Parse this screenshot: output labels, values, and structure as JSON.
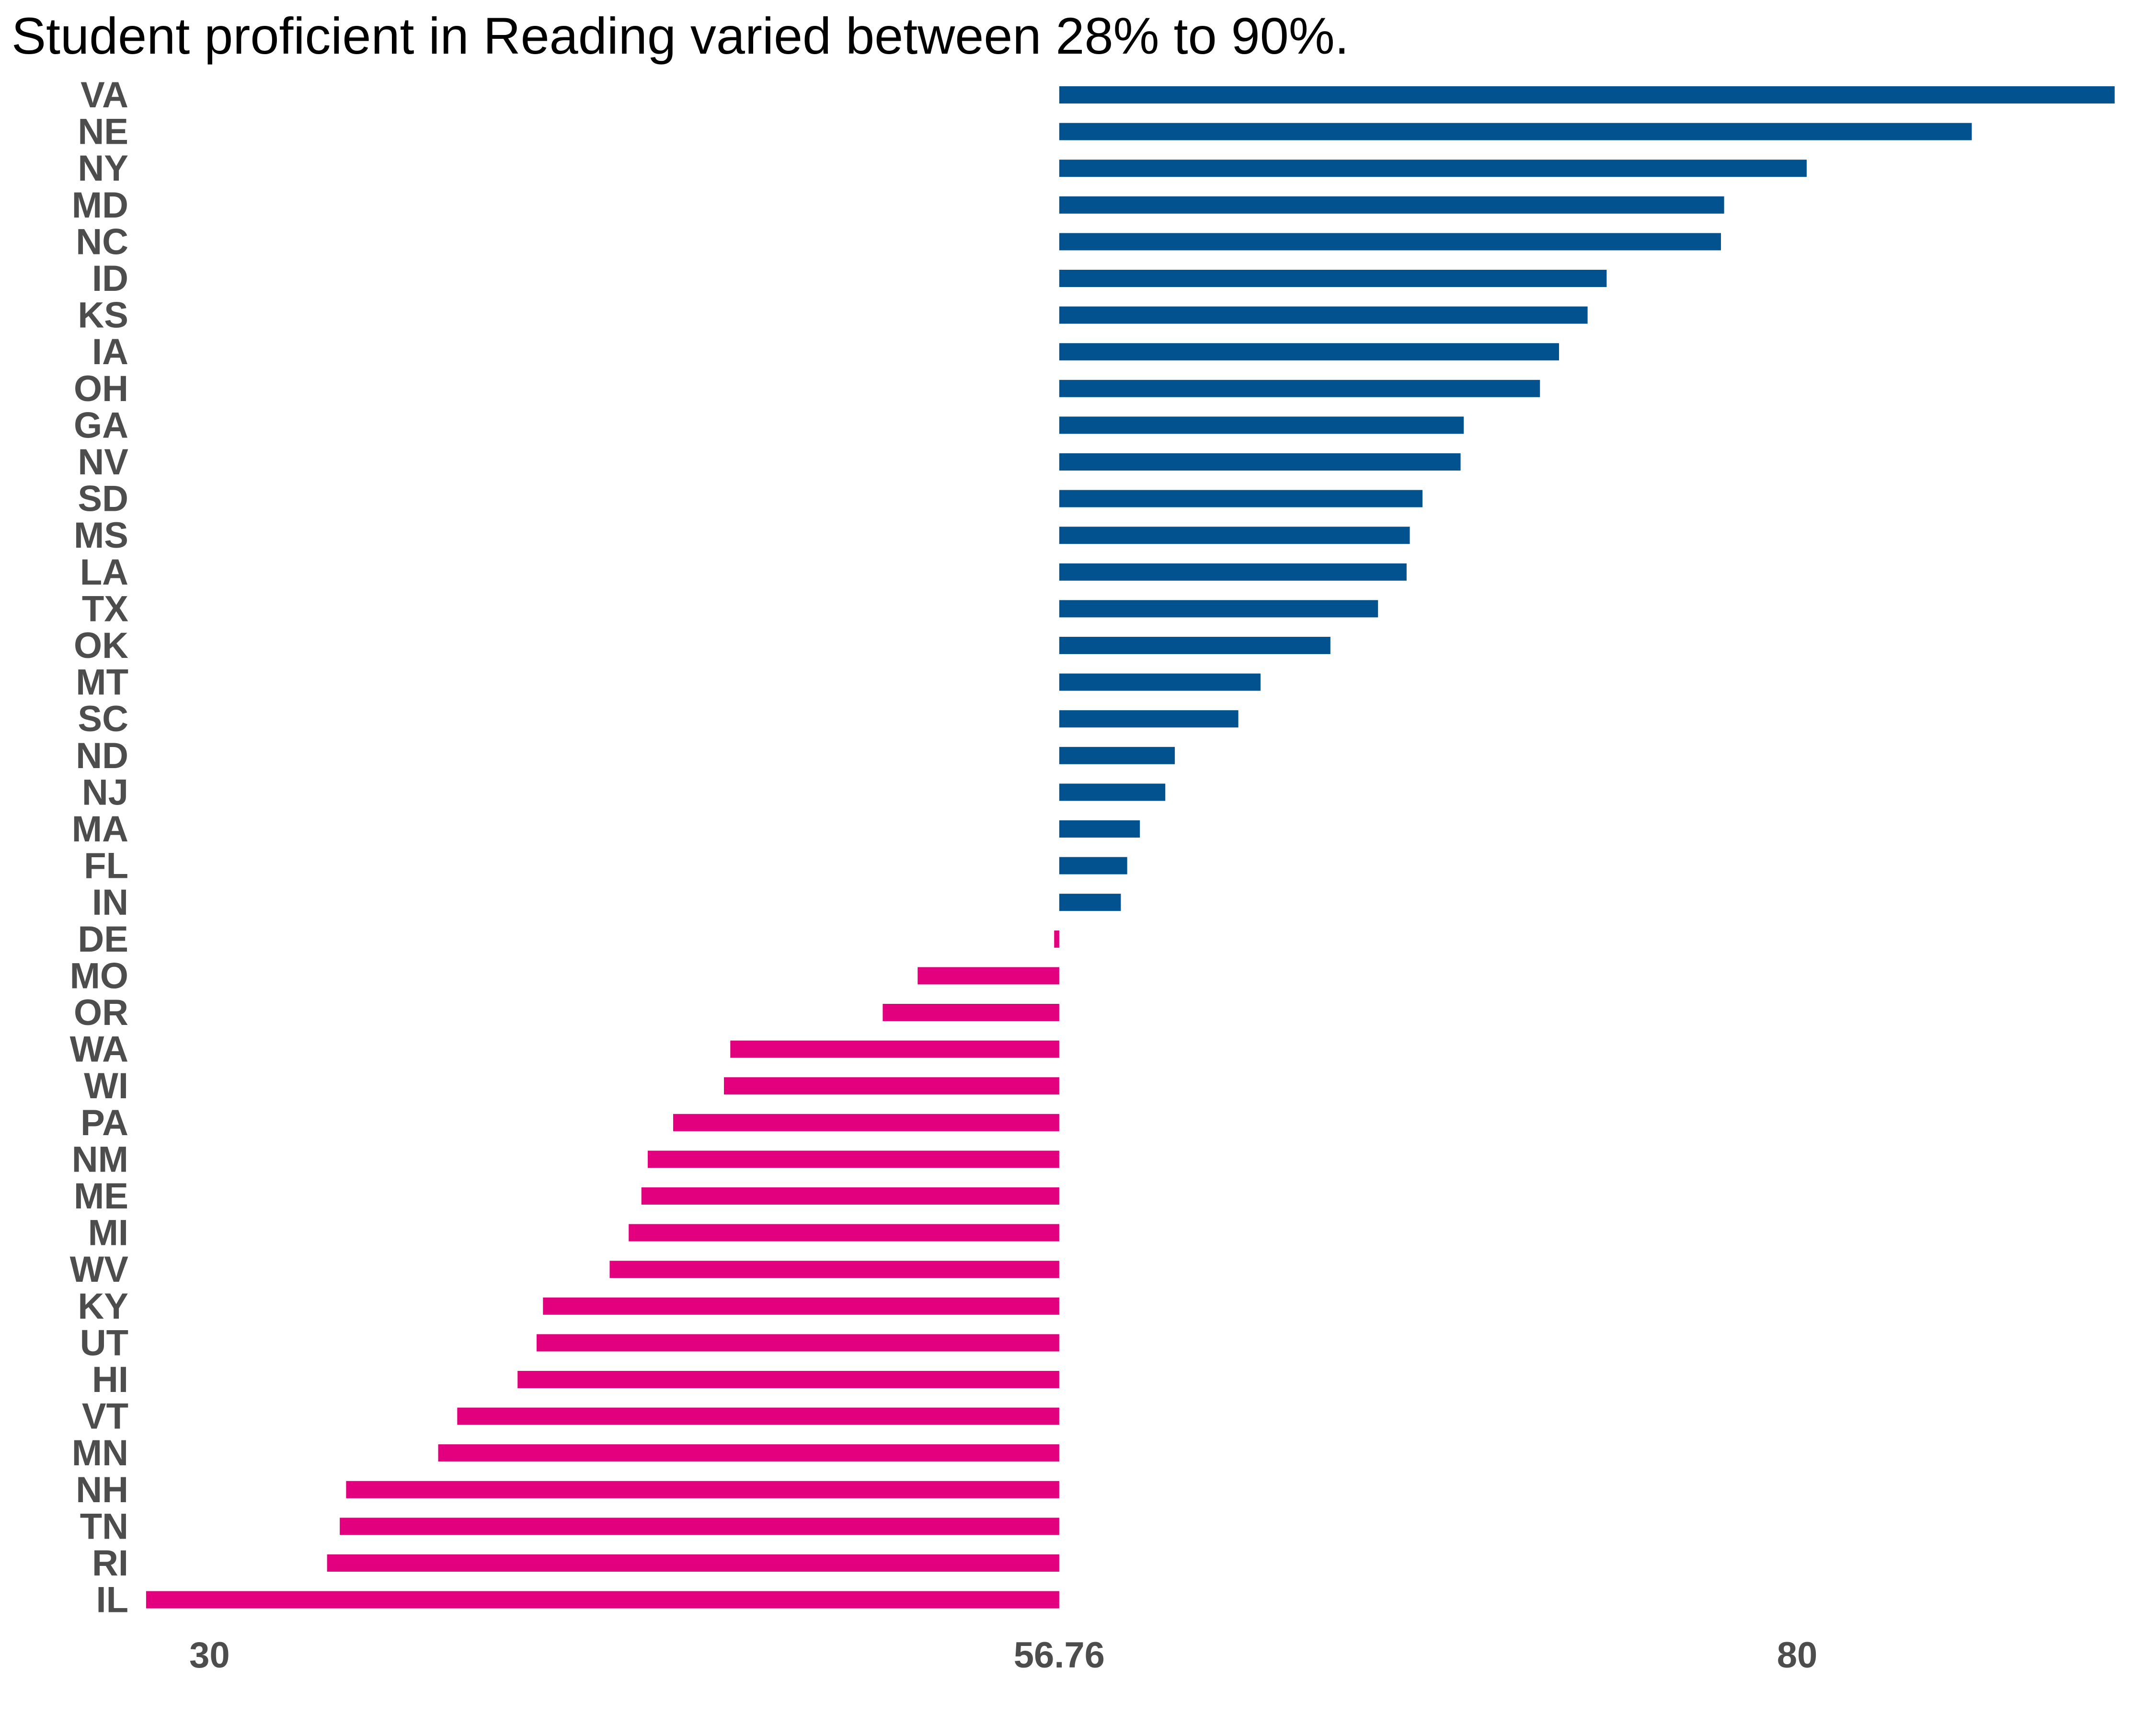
{
  "chart_data": {
    "type": "bar",
    "orientation": "horizontal",
    "title": "Student proficient in Reading varied between 28% to 90%.",
    "xlabel": "",
    "ylabel": "",
    "baseline": 56.76,
    "xlim": [
      27.7,
      91.0
    ],
    "xticks": [
      30,
      56.76,
      80
    ],
    "xtick_labels": [
      "30",
      "56.76",
      "80"
    ],
    "grid": false,
    "colors": {
      "above": "#02528f",
      "below": "#e3007f"
    },
    "categories": [
      "VA",
      "NE",
      "NY",
      "MD",
      "NC",
      "ID",
      "KS",
      "IA",
      "OH",
      "GA",
      "NV",
      "SD",
      "MS",
      "LA",
      "TX",
      "OK",
      "MT",
      "SC",
      "ND",
      "NJ",
      "MA",
      "FL",
      "IN",
      "DE",
      "MO",
      "OR",
      "WA",
      "WI",
      "PA",
      "NM",
      "ME",
      "MI",
      "WV",
      "KY",
      "UT",
      "HI",
      "VT",
      "MN",
      "NH",
      "TN",
      "RI",
      "IL"
    ],
    "values": [
      90.0,
      85.5,
      80.3,
      77.7,
      77.6,
      74.0,
      73.4,
      72.5,
      71.9,
      69.5,
      69.4,
      68.2,
      67.8,
      67.7,
      66.8,
      65.3,
      63.1,
      62.4,
      60.4,
      60.1,
      59.3,
      58.9,
      58.7,
      56.6,
      52.3,
      51.2,
      46.4,
      46.2,
      44.6,
      43.8,
      43.6,
      43.2,
      42.6,
      40.5,
      40.3,
      39.7,
      37.8,
      37.2,
      34.3,
      34.1,
      33.7,
      28.0
    ]
  }
}
